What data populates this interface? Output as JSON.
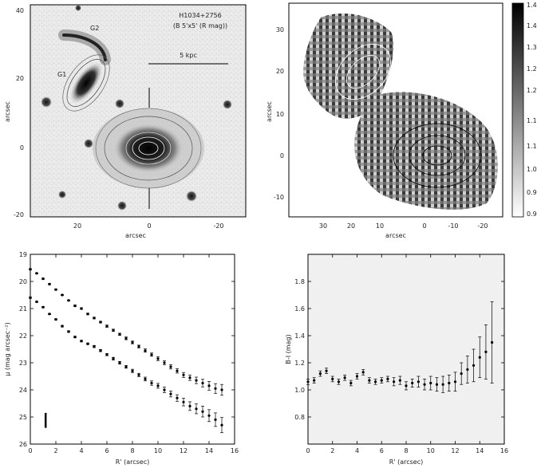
{
  "image_panels": {
    "top_left": {
      "object_name": "H1034+2756",
      "filter_note": "(B 5'x5' (R mag))",
      "scalebar_label": "5 kpc",
      "labels": [
        "G1",
        "G2"
      ],
      "x_axis_label": "arcsec",
      "y_axis_label": "arcsec",
      "x_ticks": [
        "20",
        "0",
        "-20"
      ],
      "y_ticks": [
        "40",
        "20",
        "0",
        "-20"
      ]
    },
    "top_right": {
      "x_axis_label": "arcsec",
      "y_axis_label": "arcsec",
      "x_ticks": [
        "30",
        "20",
        "10",
        "0",
        "-10",
        "-20"
      ],
      "y_ticks": [
        "30",
        "20",
        "10",
        "0",
        "-10"
      ],
      "colorbar_ticks": [
        "1.45",
        "1.4",
        "1.34",
        "1.28",
        "1.22",
        "1.16",
        "1.1",
        "1.05",
        "0.99",
        "0.93"
      ]
    }
  },
  "chart_data": [
    {
      "type": "scatter",
      "title": "",
      "xlabel": "R' (arcsec)",
      "ylabel": "μ (mag arcsec⁻²)",
      "xlim": [
        0,
        16
      ],
      "ylim": [
        26,
        19
      ],
      "x_ticks": [
        0,
        2,
        4,
        6,
        8,
        10,
        12,
        14,
        16
      ],
      "y_ticks": [
        19,
        20,
        21,
        22,
        23,
        24,
        25,
        26
      ],
      "series": [
        {
          "x": [
            0.0,
            0.5,
            1.0,
            1.5,
            2.0,
            2.5,
            3.0,
            3.5,
            4.0,
            4.5,
            5.0,
            5.5,
            6.0,
            6.5,
            7.0,
            7.5,
            8.0,
            8.5,
            9.0,
            9.5,
            10.0,
            10.5,
            11.0,
            11.5,
            12.0,
            12.5,
            13.0,
            13.5,
            14.0,
            14.5,
            15.0
          ],
          "values": [
            19.55,
            19.7,
            19.9,
            20.1,
            20.3,
            20.5,
            20.7,
            20.9,
            21.0,
            21.2,
            21.35,
            21.5,
            21.65,
            21.8,
            21.95,
            22.1,
            22.25,
            22.4,
            22.55,
            22.7,
            22.85,
            23.0,
            23.15,
            23.3,
            23.45,
            23.55,
            23.65,
            23.75,
            23.85,
            23.95,
            24.0
          ],
          "errors": [
            0.02,
            0.02,
            0.02,
            0.02,
            0.02,
            0.02,
            0.02,
            0.03,
            0.03,
            0.03,
            0.03,
            0.03,
            0.04,
            0.04,
            0.04,
            0.05,
            0.05,
            0.05,
            0.06,
            0.06,
            0.07,
            0.07,
            0.08,
            0.08,
            0.09,
            0.1,
            0.12,
            0.14,
            0.16,
            0.18,
            0.2
          ]
        },
        {
          "x": [
            0.0,
            0.5,
            1.0,
            1.5,
            2.0,
            2.5,
            3.0,
            3.5,
            4.0,
            4.5,
            5.0,
            5.5,
            6.0,
            6.5,
            7.0,
            7.5,
            8.0,
            8.5,
            9.0,
            9.5,
            10.0,
            10.5,
            11.0,
            11.5,
            12.0,
            12.5,
            13.0,
            13.5,
            14.0,
            14.5,
            15.0
          ],
          "values": [
            20.6,
            20.75,
            20.95,
            21.2,
            21.4,
            21.65,
            21.85,
            22.05,
            22.2,
            22.3,
            22.4,
            22.55,
            22.7,
            22.85,
            23.0,
            23.15,
            23.3,
            23.45,
            23.6,
            23.75,
            23.85,
            24.0,
            24.15,
            24.3,
            24.45,
            24.6,
            24.7,
            24.8,
            24.95,
            25.1,
            25.3
          ],
          "errors": [
            0.02,
            0.02,
            0.02,
            0.02,
            0.02,
            0.03,
            0.03,
            0.03,
            0.03,
            0.03,
            0.04,
            0.04,
            0.04,
            0.05,
            0.05,
            0.05,
            0.06,
            0.06,
            0.07,
            0.08,
            0.09,
            0.1,
            0.11,
            0.12,
            0.14,
            0.16,
            0.18,
            0.2,
            0.22,
            0.25,
            0.28
          ]
        }
      ],
      "scalebar": {
        "x": 1.2,
        "y_from": 24.85,
        "y_to": 25.4
      }
    },
    {
      "type": "scatter",
      "title": "",
      "xlabel": "R' (arcsec)",
      "ylabel": "B-I (mag)",
      "xlim": [
        0,
        16
      ],
      "ylim": [
        0.6,
        2.0
      ],
      "x_ticks": [
        0,
        2,
        4,
        6,
        8,
        10,
        12,
        14,
        16
      ],
      "y_ticks": [
        0.8,
        1.0,
        1.2,
        1.4,
        1.6,
        1.8
      ],
      "series": [
        {
          "x": [
            0.0,
            0.5,
            1.0,
            1.5,
            2.0,
            2.5,
            3.0,
            3.5,
            4.0,
            4.5,
            5.0,
            5.5,
            6.0,
            6.5,
            7.0,
            7.5,
            8.0,
            8.5,
            9.0,
            9.5,
            10.0,
            10.5,
            11.0,
            11.5,
            12.0,
            12.5,
            13.0,
            13.5,
            14.0,
            14.5,
            15.0
          ],
          "values": [
            1.06,
            1.07,
            1.12,
            1.14,
            1.08,
            1.06,
            1.09,
            1.05,
            1.1,
            1.13,
            1.07,
            1.06,
            1.07,
            1.08,
            1.06,
            1.07,
            1.03,
            1.05,
            1.06,
            1.04,
            1.05,
            1.04,
            1.04,
            1.05,
            1.06,
            1.12,
            1.15,
            1.18,
            1.24,
            1.28,
            1.35
          ],
          "errors": [
            0.02,
            0.02,
            0.02,
            0.02,
            0.02,
            0.02,
            0.02,
            0.02,
            0.02,
            0.02,
            0.02,
            0.02,
            0.02,
            0.02,
            0.03,
            0.03,
            0.03,
            0.03,
            0.04,
            0.04,
            0.05,
            0.05,
            0.06,
            0.06,
            0.07,
            0.08,
            0.1,
            0.12,
            0.15,
            0.2,
            0.3
          ]
        }
      ]
    }
  ]
}
